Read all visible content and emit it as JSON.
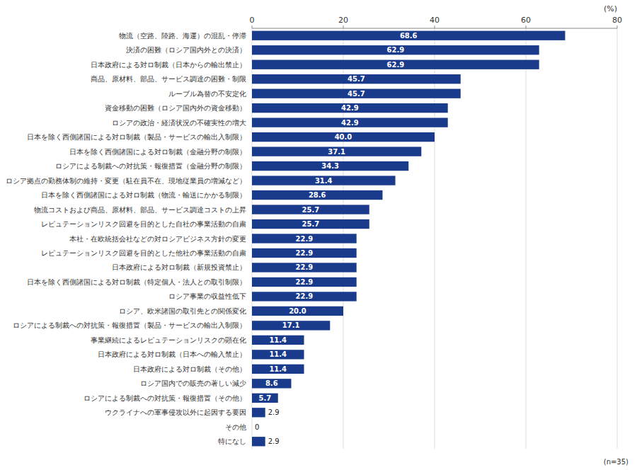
{
  "chart_data": {
    "type": "bar",
    "orientation": "horizontal",
    "xlabel": "(%)",
    "annotations": [
      "(n=35)"
    ],
    "categories": [
      "物流（空路、陸路、海運）の混乱・停滞",
      "決済の困難（ロシア国内外との決済）",
      "日本政府による対ロ制裁（日本からの輸出禁止）",
      "商品、原材料、部品、サービス調達の困難・制限",
      "ルーブル為替の不安定化",
      "資金移動の困難（ロシア国内外の資金移動）",
      "ロシアの政治・経済状況の不確実性の増大",
      "日本を除く西側諸国による対ロ制裁（製品・サービスの輸出入制限）",
      "日本を除く西側諸国による対ロ制裁（金融分野の制限）",
      "ロシアによる制裁への対抗策・報復措置（金融分野の制限）",
      "ロシア拠点の勤務体制の維持・変更（駐在員不在、現地従業員の増減など）",
      "日本を除く西側諸国による対ロ制裁（物流・輸送にかかる制限）",
      "物流コストおよび商品、原材料、部品、サービス調達コストの上昇",
      "レピュテーションリスク回避を目的とした自社の事業活動の自粛",
      "本社・在欧統括会社などの対ロシアビジネス方針の変更",
      "レピュテーションリスク回避を目的とした他社の事業活動の自粛",
      "日本政府による対ロ制裁（新規投資禁止）",
      "日本を除く西側諸国による対ロ制裁（特定個人・法人との取引制限）",
      "ロシア事業の収益性低下",
      "ロシア、欧米諸国の取引先との関係変化",
      "ロシアによる制裁への対抗策・報復措置（製品・サービスの輸出入制限）",
      "事業継続によるレピュテーションリスクの顕在化",
      "日本政府による対ロ制裁（日本への輸入禁止）",
      "日本政府による対ロ制裁（その他）",
      "ロシア国内での販売の著しい減少",
      "ロシアによる制裁への対抗策・報復措置（その他）",
      "ウクライナへの軍事侵攻以外に起因する要因",
      "その他",
      "特になし"
    ],
    "values": [
      68.6,
      62.9,
      62.9,
      45.7,
      45.7,
      42.9,
      42.9,
      40.0,
      37.1,
      34.3,
      31.4,
      28.6,
      25.7,
      25.7,
      22.9,
      22.9,
      22.9,
      22.9,
      22.9,
      20.0,
      17.1,
      11.4,
      11.4,
      11.4,
      8.6,
      5.7,
      2.9,
      0,
      2.9
    ],
    "value_labels": [
      "68.6",
      "62.9",
      "62.9",
      "45.7",
      "45.7",
      "42.9",
      "42.9",
      "40.0",
      "37.1",
      "34.3",
      "31.4",
      "28.6",
      "25.7",
      "25.7",
      "22.9",
      "22.9",
      "22.9",
      "22.9",
      "22.9",
      "20.0",
      "17.1",
      "11.4",
      "11.4",
      "11.4",
      "8.6",
      "5.7",
      "2.9",
      "0",
      "2.9"
    ],
    "data_labels": true,
    "color": "#1a3a8c",
    "xlim": [
      0,
      80
    ],
    "xticks": [
      0,
      20,
      40,
      60,
      80
    ],
    "grid": true
  }
}
